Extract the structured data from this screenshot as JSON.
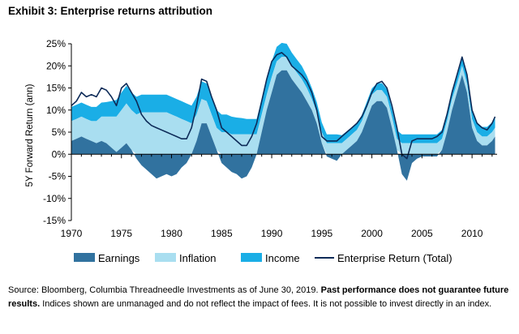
{
  "exhibit_title": "Exhibit 3: Enterprise returns attribution",
  "chart_data": {
    "type": "area",
    "title": "",
    "xlabel": "",
    "ylabel": "5Y Forward Return (ann)",
    "xlim": [
      1970,
      2012.5
    ],
    "ylim": [
      -15,
      25
    ],
    "y_ticks": [
      "25%",
      "20%",
      "15%",
      "10%",
      "5%",
      "0%",
      "-5%",
      "-10%",
      "-15%"
    ],
    "x_ticks": [
      "1970",
      "1975",
      "1980",
      "1985",
      "1990",
      "1995",
      "2000",
      "2005",
      "2010"
    ],
    "grid": false,
    "legend_position": "bottom",
    "colors": {
      "earnings": "#31729f",
      "inflation": "#a9def0",
      "income": "#1aaee6",
      "total": "#0d2b58"
    },
    "legend": [
      "Earnings",
      "Inflation",
      "Income",
      "Enterprise Return (Total)"
    ],
    "x": [
      1970.0,
      1970.5,
      1971.0,
      1971.5,
      1972.0,
      1972.5,
      1973.0,
      1973.5,
      1974.0,
      1974.5,
      1975.0,
      1975.5,
      1976.0,
      1976.5,
      1977.0,
      1977.5,
      1978.0,
      1978.5,
      1979.0,
      1979.5,
      1980.0,
      1980.5,
      1981.0,
      1981.5,
      1982.0,
      1982.5,
      1983.0,
      1983.5,
      1984.0,
      1984.5,
      1985.0,
      1985.5,
      1986.0,
      1986.5,
      1987.0,
      1987.5,
      1988.0,
      1988.5,
      1989.0,
      1989.5,
      1990.0,
      1990.5,
      1991.0,
      1991.5,
      1992.0,
      1992.5,
      1993.0,
      1993.5,
      1994.0,
      1994.5,
      1995.0,
      1995.5,
      1996.0,
      1996.5,
      1997.0,
      1997.5,
      1998.0,
      1998.5,
      1999.0,
      1999.5,
      2000.0,
      2000.5,
      2001.0,
      2001.5,
      2002.0,
      2002.5,
      2003.0,
      2003.5,
      2004.0,
      2004.5,
      2005.0,
      2005.5,
      2006.0,
      2006.5,
      2007.0,
      2007.5,
      2008.0,
      2008.5,
      2009.0,
      2009.5,
      2010.0,
      2010.5,
      2011.0,
      2011.5,
      2012.0,
      2012.3
    ],
    "series": [
      {
        "name": "Earnings",
        "values": [
          3,
          3.5,
          4,
          3.5,
          3,
          2.5,
          3,
          2.5,
          1.5,
          0.5,
          1.5,
          2.5,
          1,
          -1,
          -2.5,
          -3.5,
          -4.5,
          -5.5,
          -5,
          -4.5,
          -5,
          -4.5,
          -3,
          -2,
          0,
          3,
          7,
          7,
          4,
          1,
          -2,
          -3,
          -4,
          -4.5,
          -5.5,
          -5,
          -3,
          0,
          5,
          10,
          14,
          18,
          19,
          19,
          17,
          15.5,
          14,
          12,
          10,
          7,
          2.5,
          -0.5,
          -1,
          -1.5,
          0,
          1,
          2,
          3,
          5,
          8,
          11,
          12,
          12,
          10.5,
          6,
          1,
          -4.5,
          -6,
          -2,
          -1,
          -0.5,
          -0.5,
          -0.5,
          -0.5,
          1,
          5,
          10,
          14,
          18,
          14,
          6,
          3,
          2,
          2,
          3,
          4
        ]
      },
      {
        "name": "Inflation",
        "values": [
          4.5,
          4.5,
          4.5,
          4.5,
          4.5,
          5,
          5.5,
          6,
          7,
          8,
          8.5,
          9,
          9,
          9,
          9.5,
          9.5,
          9.5,
          9.5,
          9.5,
          9.5,
          9,
          8.5,
          8,
          7.5,
          7,
          6,
          5.5,
          5,
          5,
          5,
          5,
          5,
          4.5,
          4.5,
          4.5,
          4.5,
          4.5,
          4.5,
          4,
          3.5,
          3.5,
          3,
          3,
          3,
          3,
          3,
          3,
          3,
          2.5,
          2.5,
          2.5,
          2.5,
          2.5,
          2.5,
          2.5,
          2.5,
          2.5,
          2.5,
          2.5,
          2.5,
          2.5,
          2.5,
          2.5,
          2.5,
          2.5,
          2.5,
          2.5,
          2.5,
          2.5,
          2.5,
          2.5,
          2.5,
          2.5,
          2.5,
          2.5,
          2.5,
          2.5,
          2,
          2,
          2,
          2,
          2,
          2,
          2,
          2,
          2
        ]
      },
      {
        "name": "Income",
        "values": [
          3.2,
          3.2,
          3.2,
          3.2,
          3.2,
          3.2,
          3.2,
          3.3,
          3.5,
          3.8,
          4,
          4,
          4,
          4,
          4,
          4,
          4,
          4,
          4,
          4,
          4,
          4,
          4,
          4,
          4,
          4,
          4,
          4,
          4,
          4,
          4,
          4,
          4,
          3.8,
          3.7,
          3.5,
          3.5,
          3.5,
          3.5,
          3.5,
          3.5,
          3.3,
          3.2,
          3,
          3,
          3,
          3,
          2.8,
          2.5,
          2.3,
          2.2,
          2,
          2,
          2,
          1.8,
          1.7,
          1.6,
          1.5,
          1.4,
          1.4,
          1.4,
          1.5,
          1.6,
          1.7,
          1.8,
          1.9,
          2,
          2,
          2,
          2,
          2,
          2,
          2,
          2,
          2,
          2,
          2,
          2,
          2,
          2.2,
          2.2,
          2.2,
          2.2,
          2.2,
          2.2,
          2.2
        ]
      },
      {
        "name": "Enterprise Return (Total)",
        "values": [
          11,
          12,
          14,
          13,
          13.5,
          13,
          15,
          14.5,
          13,
          11,
          15,
          16,
          14,
          12,
          9,
          7.5,
          6.5,
          6,
          5.5,
          5,
          4.5,
          4,
          3.5,
          3.5,
          6,
          11,
          17,
          16.5,
          13,
          10,
          6,
          5,
          4,
          3,
          2,
          2,
          4,
          7,
          12,
          17,
          21,
          22.5,
          23,
          22,
          20,
          19,
          18,
          16.5,
          14,
          10,
          4,
          3,
          3,
          3,
          4,
          5,
          6,
          7,
          8.5,
          11,
          14,
          16,
          16.5,
          15,
          11,
          6,
          0,
          -1,
          3,
          3.5,
          3.5,
          3.5,
          3.5,
          4,
          5,
          9,
          14,
          18,
          22,
          18,
          10,
          7,
          6,
          5.5,
          7,
          8.5
        ]
      }
    ]
  },
  "source_note": {
    "plain": "Source: Bloomberg, Columbia Threadneedle Investments as of June 30, 2019. ",
    "bold": "Past performance does not guarantee future results.",
    "tail": " Indices shown are unmanaged and do not reflect the impact of fees. It is not possible to invest directly in an index."
  }
}
